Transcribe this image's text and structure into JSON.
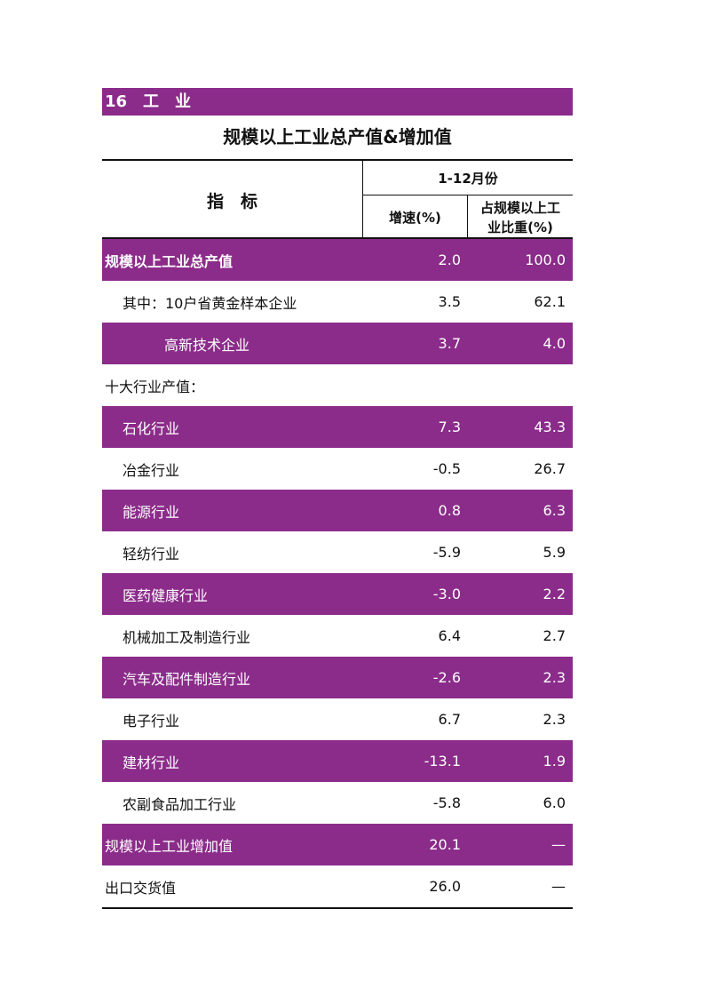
{
  "header": {
    "section": "16　工　业",
    "title": "规模以上工业总产值&增加值"
  },
  "table": {
    "columns": {
      "indicator": "指　标",
      "period": "1-12月份",
      "growth": "增速(%)",
      "share": "占规模以上工业比重(%)"
    },
    "rows": [
      [
        "规模以上工业总产值",
        "2.0",
        "100.0"
      ],
      [
        "其中：10户省黄金样本企业",
        "3.5",
        "62.1"
      ],
      [
        "高新技术企业",
        "3.7",
        "4.0"
      ],
      [
        "十大行业产值："
      ],
      [
        "石化行业",
        "7.3",
        "43.3"
      ],
      [
        "冶金行业",
        "-0.5",
        "26.7"
      ],
      [
        "能源行业",
        "0.8",
        "6.3"
      ],
      [
        "轻纺行业",
        "-5.9",
        "5.9"
      ],
      [
        "医药健康行业",
        "-3.0",
        "2.2"
      ],
      [
        "机械加工及制造行业",
        "6.4",
        "2.7"
      ],
      [
        "汽车及配件制造行业",
        "-2.6",
        "2.3"
      ],
      [
        "电子行业",
        "6.7",
        "2.3"
      ],
      [
        "建材行业",
        "-13.1",
        "1.9"
      ],
      [
        "农副食品加工行业",
        "-5.8",
        "6.0"
      ],
      [
        "规模以上工业增加值",
        "20.1",
        "—"
      ],
      [
        "出口交货值",
        "26.0",
        "—"
      ]
    ]
  }
}
